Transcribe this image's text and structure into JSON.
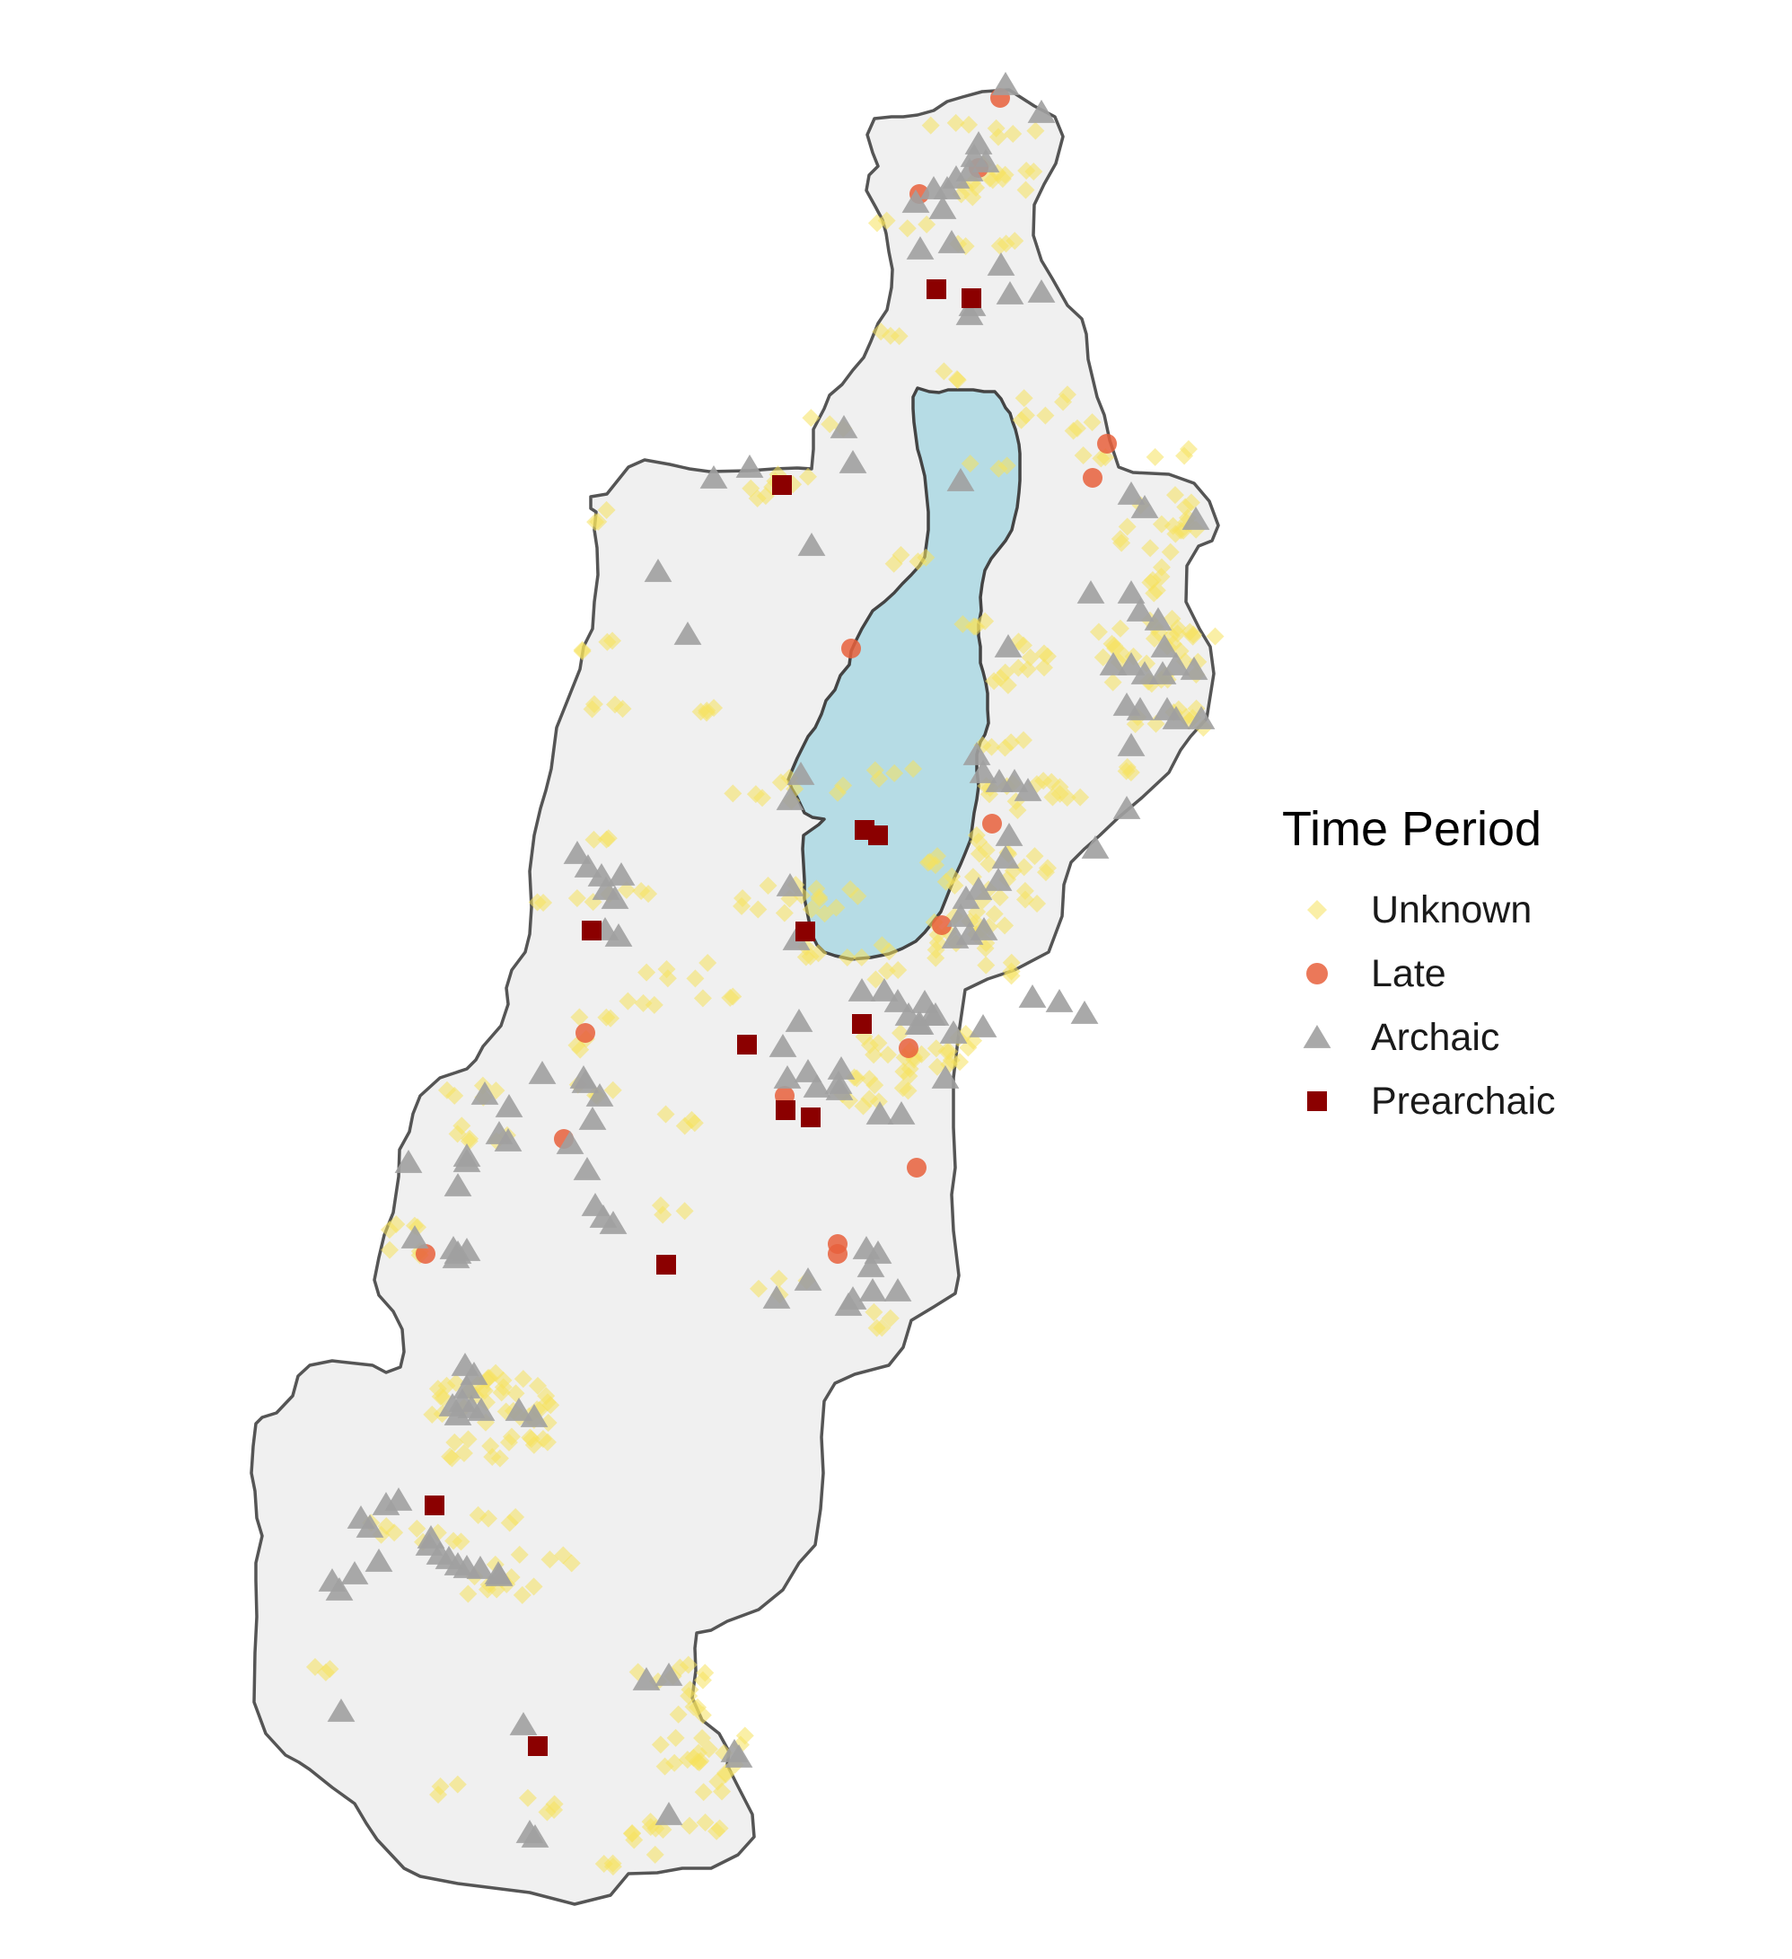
{
  "legend": {
    "title": "Time Period",
    "entries": [
      {
        "label": "Unknown",
        "shape": "diamond-icon",
        "color": "#F5E15C",
        "opacity": 0.55
      },
      {
        "label": "Late",
        "shape": "circle-icon",
        "color": "#E8603C",
        "opacity": 0.85
      },
      {
        "label": "Archaic",
        "shape": "triangle-icon",
        "color": "#A0A0A0",
        "opacity": 0.9
      },
      {
        "label": "Prearchaic",
        "shape": "square-icon",
        "color": "#8B0000",
        "opacity": 1.0
      }
    ]
  },
  "colors": {
    "land_fill": "#F0F0F0",
    "land_outline": "#555555",
    "lake_fill": "#B6DCE5",
    "lake_outline": "#444444"
  }
}
